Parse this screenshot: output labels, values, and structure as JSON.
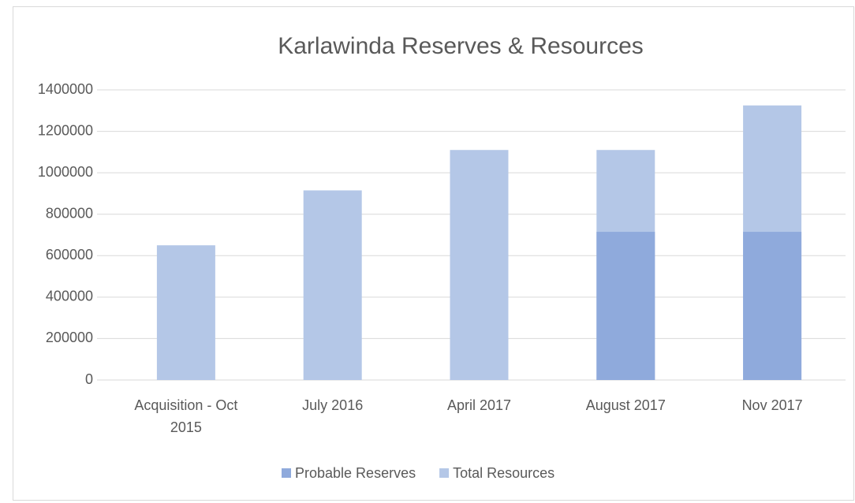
{
  "chart_data": {
    "type": "bar",
    "title": "Karlawinda Reserves & Resources",
    "categories": [
      "Acquisition - Oct 2015",
      "July 2016",
      "April 2017",
      "August 2017",
      "Nov 2017"
    ],
    "series": [
      {
        "name": "Probable Reserves",
        "color": "#8faadc",
        "values": [
          null,
          null,
          null,
          715000,
          715000
        ]
      },
      {
        "name": "Total Resources",
        "color": "#b4c7e7",
        "values": [
          650000,
          915000,
          1110000,
          1110000,
          1325000
        ]
      }
    ],
    "ylim": [
      0,
      1400000
    ],
    "yticks": [
      0,
      200000,
      400000,
      600000,
      800000,
      1000000,
      1200000,
      1400000
    ],
    "grid": true,
    "legend": "bottom"
  }
}
